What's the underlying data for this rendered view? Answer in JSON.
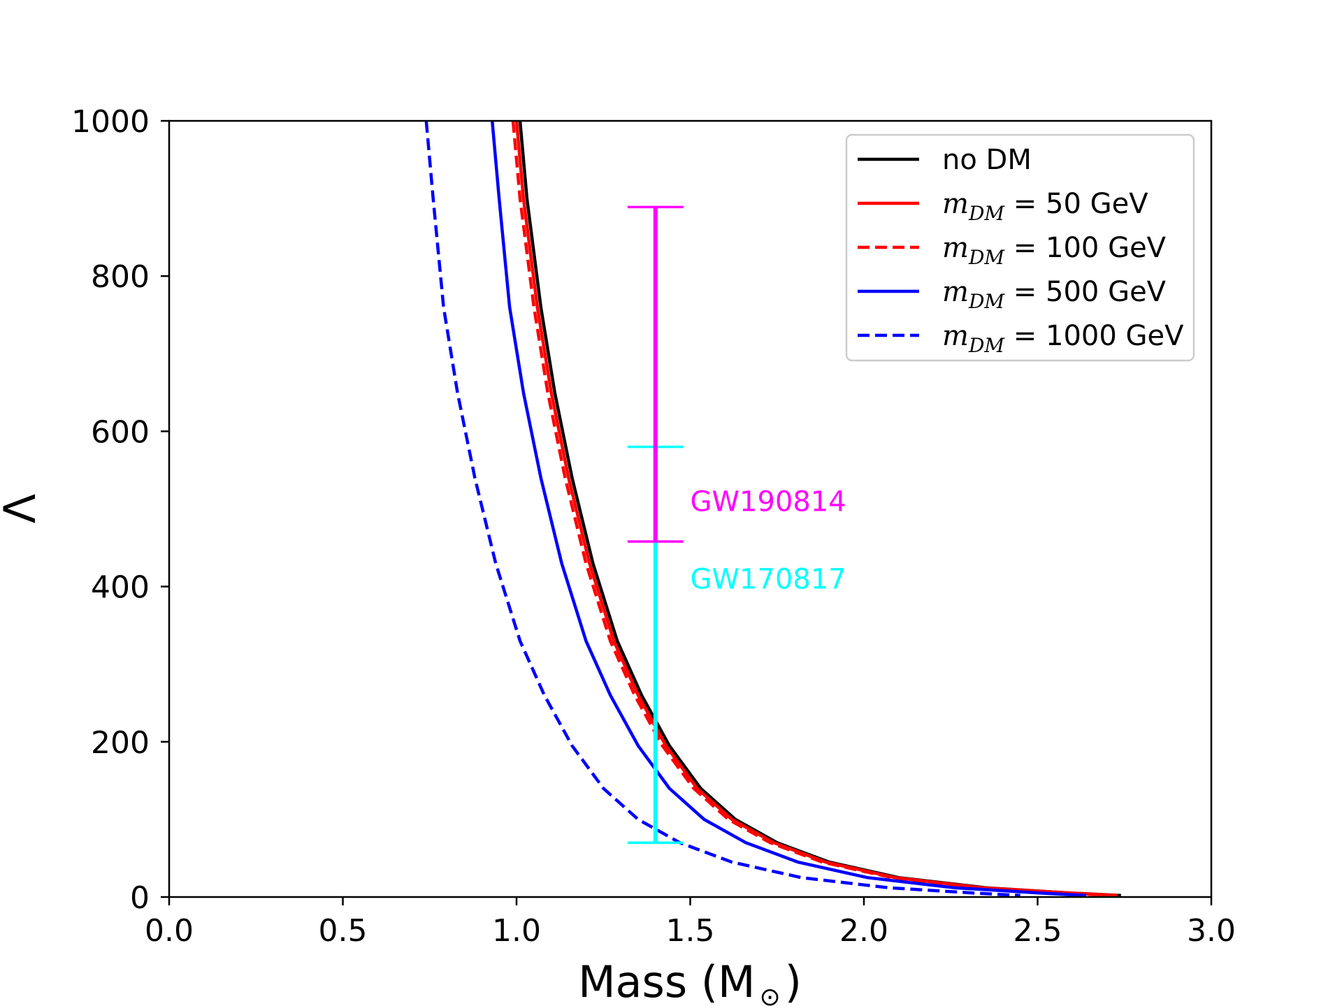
{
  "chart_data": {
    "type": "line",
    "title": "",
    "xlabel": "Mass (M",
    "xlabel_symbol": "⊙",
    "xlabel_close": ")",
    "ylabel": "Λ",
    "xlim": [
      0.0,
      3.0
    ],
    "ylim": [
      0,
      1000
    ],
    "grid": false,
    "legend_position": "top-right",
    "x_ticks": [
      0.0,
      0.5,
      1.0,
      1.5,
      2.0,
      2.5,
      3.0
    ],
    "x_tick_labels": [
      "0.0",
      "0.5",
      "1.0",
      "1.5",
      "2.0",
      "2.5",
      "3.0"
    ],
    "y_ticks": [
      0,
      200,
      400,
      600,
      800,
      1000
    ],
    "y_tick_labels": [
      "0",
      "200",
      "400",
      "600",
      "800",
      "1000"
    ],
    "series": [
      {
        "name": "no DM",
        "legend_math": "",
        "legend_value": "",
        "color": "#000000",
        "dash": "solid",
        "points": [
          [
            1.01,
            1000
          ],
          [
            1.03,
            900
          ],
          [
            1.07,
            760
          ],
          [
            1.11,
            650
          ],
          [
            1.16,
            540
          ],
          [
            1.22,
            430
          ],
          [
            1.29,
            330
          ],
          [
            1.36,
            260
          ],
          [
            1.44,
            195
          ],
          [
            1.53,
            140
          ],
          [
            1.63,
            100
          ],
          [
            1.75,
            70
          ],
          [
            1.9,
            45
          ],
          [
            2.1,
            25
          ],
          [
            2.35,
            12
          ],
          [
            2.6,
            5
          ],
          [
            2.74,
            2
          ]
        ]
      },
      {
        "name": "m_DM = 50 GeV",
        "legend_math": "m",
        "legend_sub": "DM",
        "legend_value": " = 50 GeV",
        "color": "#ff0000",
        "dash": "solid",
        "points": [
          [
            1.0,
            1000
          ],
          [
            1.02,
            900
          ],
          [
            1.06,
            760
          ],
          [
            1.1,
            650
          ],
          [
            1.15,
            540
          ],
          [
            1.21,
            430
          ],
          [
            1.28,
            330
          ],
          [
            1.35,
            260
          ],
          [
            1.43,
            195
          ],
          [
            1.52,
            140
          ],
          [
            1.62,
            100
          ],
          [
            1.74,
            70
          ],
          [
            1.89,
            45
          ],
          [
            2.09,
            25
          ],
          [
            2.34,
            12
          ],
          [
            2.6,
            5
          ],
          [
            2.73,
            2
          ]
        ]
      },
      {
        "name": "m_DM = 100 GeV",
        "legend_math": "m",
        "legend_sub": "DM",
        "legend_value": " = 100 GeV",
        "color": "#ff0000",
        "dash": "dashed",
        "points": [
          [
            0.99,
            1000
          ],
          [
            1.01,
            900
          ],
          [
            1.05,
            760
          ],
          [
            1.09,
            650
          ],
          [
            1.14,
            540
          ],
          [
            1.2,
            430
          ],
          [
            1.27,
            330
          ],
          [
            1.34,
            260
          ],
          [
            1.42,
            195
          ],
          [
            1.51,
            140
          ],
          [
            1.61,
            100
          ],
          [
            1.73,
            70
          ],
          [
            1.88,
            45
          ],
          [
            2.08,
            25
          ],
          [
            2.33,
            12
          ],
          [
            2.58,
            5
          ],
          [
            2.71,
            2
          ]
        ]
      },
      {
        "name": "m_DM = 500 GeV",
        "legend_math": "m",
        "legend_sub": "DM",
        "legend_value": " = 500 GeV",
        "color": "#0000ff",
        "dash": "solid",
        "points": [
          [
            0.93,
            1000
          ],
          [
            0.95,
            900
          ],
          [
            0.98,
            760
          ],
          [
            1.02,
            650
          ],
          [
            1.07,
            540
          ],
          [
            1.13,
            430
          ],
          [
            1.2,
            330
          ],
          [
            1.27,
            260
          ],
          [
            1.35,
            195
          ],
          [
            1.44,
            140
          ],
          [
            1.54,
            100
          ],
          [
            1.66,
            70
          ],
          [
            1.81,
            45
          ],
          [
            2.01,
            25
          ],
          [
            2.26,
            12
          ],
          [
            2.51,
            5
          ],
          [
            2.64,
            2
          ]
        ]
      },
      {
        "name": "m_DM = 1000 GeV",
        "legend_math": "m",
        "legend_sub": "DM",
        "legend_value": " = 1000 GeV",
        "color": "#0000ff",
        "dash": "dashed",
        "points": [
          [
            0.74,
            1000
          ],
          [
            0.76,
            900
          ],
          [
            0.79,
            760
          ],
          [
            0.83,
            650
          ],
          [
            0.88,
            540
          ],
          [
            0.94,
            430
          ],
          [
            1.01,
            330
          ],
          [
            1.08,
            260
          ],
          [
            1.16,
            195
          ],
          [
            1.25,
            140
          ],
          [
            1.35,
            100
          ],
          [
            1.47,
            70
          ],
          [
            1.62,
            45
          ],
          [
            1.82,
            25
          ],
          [
            2.07,
            12
          ],
          [
            2.32,
            5
          ],
          [
            2.45,
            2
          ]
        ]
      }
    ],
    "error_bars": [
      {
        "label": "GW170817",
        "color": "#00ffff",
        "x": 1.4,
        "y_low": 70,
        "y_high": 580
      },
      {
        "label": "GW190814",
        "color": "#ff00ff",
        "x": 1.4,
        "y_low": 458,
        "y_high": 889
      }
    ]
  }
}
